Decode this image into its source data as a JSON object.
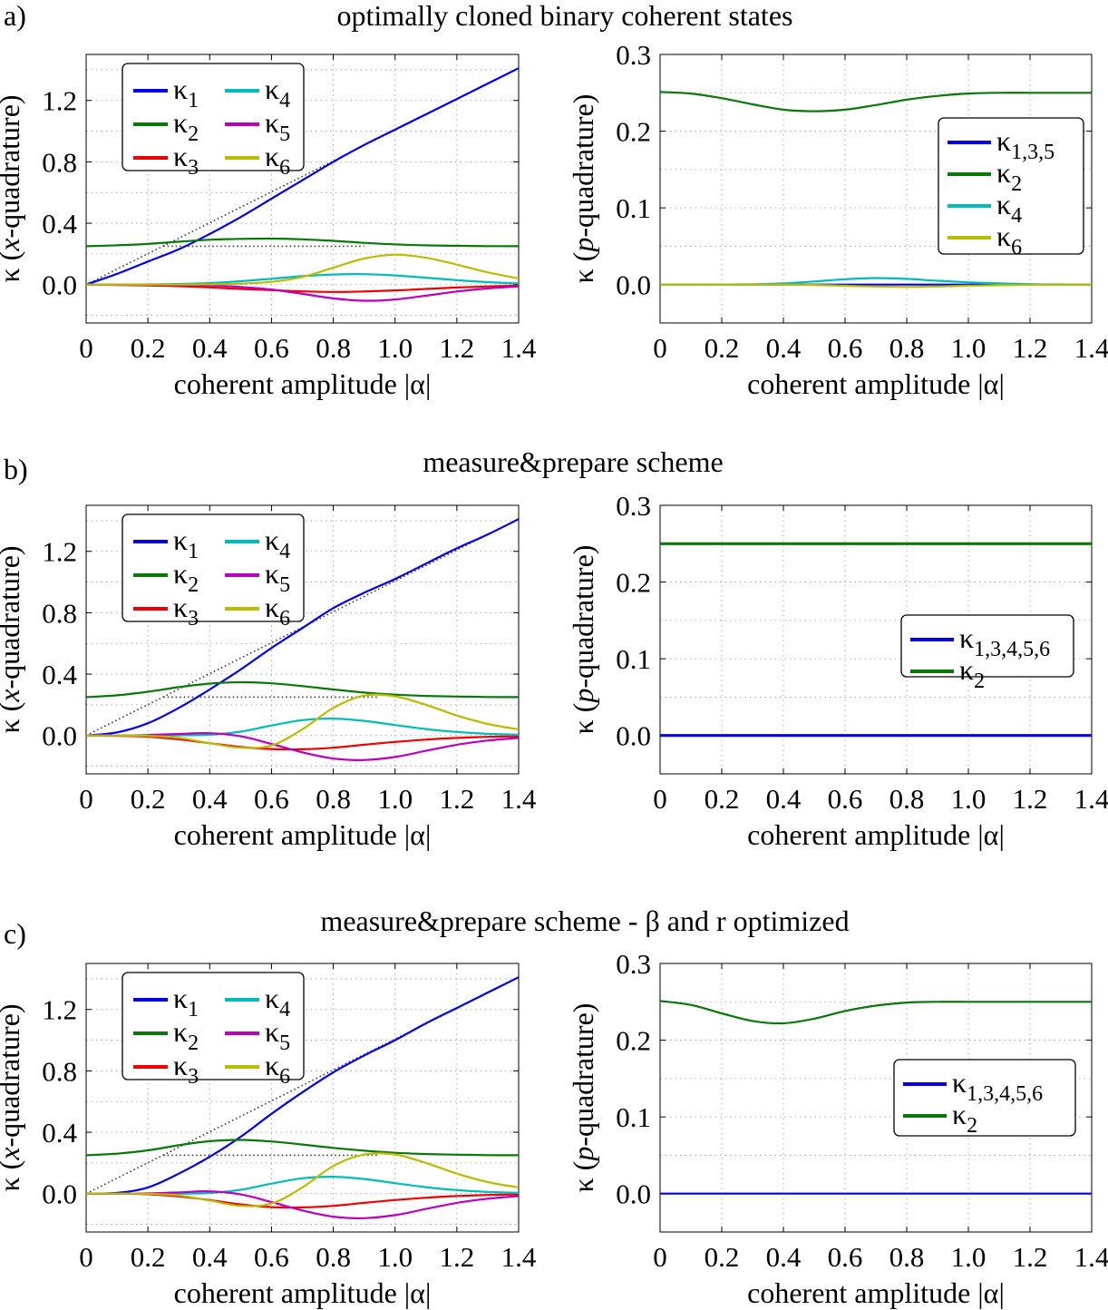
{
  "colors": {
    "k1": "#0000ee",
    "k2": "#087808",
    "k3": "#ee0000",
    "k4": "#00bbbb",
    "k5": "#bb00bb",
    "k6": "#bbbb00",
    "k135": "#0000ee",
    "ref": "#333333",
    "grid": "#999999"
  },
  "panels": [
    {
      "label": "a)",
      "title": "optimally cloned binary coherent states",
      "xlabel": "coherent amplitude |α|",
      "xticks": [
        "0",
        "0.2",
        "0.4",
        "0.6",
        "0.8",
        "1.0",
        "1.2",
        "1.4"
      ],
      "left": {
        "ylabel_pre": "κ (",
        "ylabel_var": "x",
        "ylabel_post": "-quadrature)",
        "yticks": [
          "0.0",
          "0.4",
          "0.8",
          "1.2"
        ],
        "legend": [
          {
            "sym": "κ",
            "sub": "1"
          },
          {
            "sym": "κ",
            "sub": "2"
          },
          {
            "sym": "κ",
            "sub": "3"
          },
          {
            "sym": "κ",
            "sub": "4"
          },
          {
            "sym": "κ",
            "sub": "5"
          },
          {
            "sym": "κ",
            "sub": "6"
          }
        ]
      },
      "right": {
        "ylabel_pre": "κ (",
        "ylabel_var": "p",
        "ylabel_post": "-quadrature)",
        "yticks": [
          "0.0",
          "0.1",
          "0.2",
          "0.3"
        ],
        "legend": [
          {
            "sym": "κ",
            "sub": "1,3,5"
          },
          {
            "sym": "κ",
            "sub": "2"
          },
          {
            "sym": "κ",
            "sub": "4"
          },
          {
            "sym": "κ",
            "sub": "6"
          }
        ]
      }
    },
    {
      "label": "b)",
      "title": "measure&prepare scheme",
      "xlabel": "coherent amplitude |α|",
      "xticks": [
        "0",
        "0.2",
        "0.4",
        "0.6",
        "0.8",
        "1.0",
        "1.2",
        "1.4"
      ],
      "left": {
        "ylabel_pre": "κ (",
        "ylabel_var": "x",
        "ylabel_post": "-quadrature)",
        "yticks": [
          "0.0",
          "0.4",
          "0.8",
          "1.2"
        ],
        "legend": [
          {
            "sym": "κ",
            "sub": "1"
          },
          {
            "sym": "κ",
            "sub": "2"
          },
          {
            "sym": "κ",
            "sub": "3"
          },
          {
            "sym": "κ",
            "sub": "4"
          },
          {
            "sym": "κ",
            "sub": "5"
          },
          {
            "sym": "κ",
            "sub": "6"
          }
        ]
      },
      "right": {
        "ylabel_pre": "κ (",
        "ylabel_var": "p",
        "ylabel_post": "-quadrature)",
        "yticks": [
          "0.0",
          "0.1",
          "0.2",
          "0.3"
        ],
        "legend": [
          {
            "sym": "κ",
            "sub": "1,3,4,5,6"
          },
          {
            "sym": "κ",
            "sub": "2"
          }
        ]
      }
    },
    {
      "label": "c)",
      "title": "measure&prepare scheme - β and r optimized",
      "xlabel": "coherent amplitude |α|",
      "xticks": [
        "0",
        "0.2",
        "0.4",
        "0.6",
        "0.8",
        "1.0",
        "1.2",
        "1.4"
      ],
      "left": {
        "ylabel_pre": "κ (",
        "ylabel_var": "x",
        "ylabel_post": "-quadrature)",
        "yticks": [
          "0.0",
          "0.4",
          "0.8",
          "1.2"
        ],
        "legend": [
          {
            "sym": "κ",
            "sub": "1"
          },
          {
            "sym": "κ",
            "sub": "2"
          },
          {
            "sym": "κ",
            "sub": "3"
          },
          {
            "sym": "κ",
            "sub": "4"
          },
          {
            "sym": "κ",
            "sub": "5"
          },
          {
            "sym": "κ",
            "sub": "6"
          }
        ]
      },
      "right": {
        "ylabel_pre": "κ (",
        "ylabel_var": "p",
        "ylabel_post": "-quadrature)",
        "yticks": [
          "0.0",
          "0.1",
          "0.2",
          "0.3"
        ],
        "legend": [
          {
            "sym": "κ",
            "sub": "1,3,4,5,6"
          },
          {
            "sym": "κ",
            "sub": "2"
          }
        ]
      }
    }
  ],
  "chart_data": [
    {
      "type": "line",
      "panel": "a-left",
      "xlim": [
        0,
        1.4
      ],
      "ylim": [
        -0.25,
        1.5
      ],
      "xlabel": "coherent amplitude |α|",
      "ylabel": "κ (x-quadrature)",
      "x": [
        0,
        0.1,
        0.2,
        0.3,
        0.4,
        0.5,
        0.6,
        0.7,
        0.8,
        0.9,
        1.0,
        1.1,
        1.2,
        1.3,
        1.4
      ],
      "reference": [
        {
          "name": "|α|",
          "style": "dotted",
          "x": [
            0,
            1.4
          ],
          "values": [
            0,
            1.41
          ]
        },
        {
          "name": "0.25",
          "style": "dotted",
          "x": [
            0.25,
            0.9
          ],
          "values": [
            0.25,
            0.25
          ]
        }
      ],
      "series": [
        {
          "name": "κ1",
          "color_key": "k1",
          "values": [
            0,
            0.07,
            0.15,
            0.23,
            0.33,
            0.44,
            0.56,
            0.68,
            0.8,
            0.91,
            1.01,
            1.11,
            1.21,
            1.31,
            1.41
          ]
        },
        {
          "name": "κ2",
          "color_key": "k2",
          "values": [
            0.25,
            0.256,
            0.265,
            0.28,
            0.292,
            0.298,
            0.3,
            0.295,
            0.285,
            0.272,
            0.262,
            0.256,
            0.253,
            0.251,
            0.25
          ]
        },
        {
          "name": "κ3",
          "color_key": "k3",
          "values": [
            0,
            -0.002,
            -0.005,
            -0.01,
            -0.018,
            -0.028,
            -0.036,
            -0.044,
            -0.048,
            -0.045,
            -0.038,
            -0.028,
            -0.019,
            -0.012,
            -0.007
          ]
        },
        {
          "name": "κ4",
          "color_key": "k4",
          "values": [
            0,
            0,
            0.001,
            0.004,
            0.01,
            0.022,
            0.038,
            0.055,
            0.066,
            0.068,
            0.06,
            0.045,
            0.029,
            0.016,
            0.007
          ]
        },
        {
          "name": "κ5",
          "color_key": "k5",
          "values": [
            0,
            0,
            0,
            -0.002,
            -0.006,
            -0.015,
            -0.032,
            -0.06,
            -0.09,
            -0.105,
            -0.097,
            -0.072,
            -0.045,
            -0.025,
            -0.012
          ]
        },
        {
          "name": "κ6",
          "color_key": "k6",
          "values": [
            0,
            0,
            0,
            0,
            0.002,
            0.006,
            0.018,
            0.05,
            0.11,
            0.17,
            0.195,
            0.175,
            0.13,
            0.08,
            0.04
          ]
        }
      ]
    },
    {
      "type": "line",
      "panel": "a-right",
      "xlim": [
        0,
        1.4
      ],
      "ylim": [
        -0.05,
        0.3
      ],
      "xlabel": "coherent amplitude |α|",
      "ylabel": "κ (p-quadrature)",
      "x": [
        0,
        0.1,
        0.2,
        0.3,
        0.4,
        0.5,
        0.6,
        0.7,
        0.8,
        0.9,
        1.0,
        1.1,
        1.2,
        1.3,
        1.4
      ],
      "series": [
        {
          "name": "κ1,3,5",
          "color_key": "k135",
          "values": [
            0,
            0,
            0,
            0,
            0,
            0,
            0,
            0,
            0,
            0,
            0,
            0,
            0,
            0,
            0
          ]
        },
        {
          "name": "κ2",
          "color_key": "k2",
          "values": [
            0.251,
            0.249,
            0.243,
            0.235,
            0.228,
            0.226,
            0.228,
            0.234,
            0.241,
            0.246,
            0.249,
            0.25,
            0.25,
            0.25,
            0.25
          ]
        },
        {
          "name": "κ4",
          "color_key": "k4",
          "values": [
            0,
            0,
            0,
            0.0005,
            0.0015,
            0.004,
            0.007,
            0.0085,
            0.0075,
            0.005,
            0.003,
            0.0015,
            0.0006,
            0.0002,
            0
          ]
        },
        {
          "name": "κ6",
          "color_key": "k6",
          "values": [
            0,
            0,
            0,
            0,
            0,
            -0.0005,
            -0.0015,
            -0.0025,
            -0.003,
            -0.0025,
            -0.0015,
            -0.0008,
            -0.0003,
            -0.0001,
            0
          ]
        }
      ]
    },
    {
      "type": "line",
      "panel": "b-left",
      "xlim": [
        0,
        1.4
      ],
      "ylim": [
        -0.25,
        1.5
      ],
      "xlabel": "coherent amplitude |α|",
      "ylabel": "κ (x-quadrature)",
      "x": [
        0,
        0.1,
        0.2,
        0.3,
        0.4,
        0.5,
        0.6,
        0.7,
        0.8,
        0.9,
        1.0,
        1.1,
        1.2,
        1.3,
        1.4
      ],
      "reference": [
        {
          "name": "|α|",
          "style": "dotted",
          "x": [
            0,
            1.4
          ],
          "values": [
            0,
            1.41
          ]
        },
        {
          "name": "0.25",
          "style": "dotted",
          "x": [
            0.25,
            0.95
          ],
          "values": [
            0.25,
            0.25
          ]
        }
      ],
      "series": [
        {
          "name": "κ1",
          "color_key": "k1",
          "values": [
            0,
            0.02,
            0.08,
            0.18,
            0.3,
            0.43,
            0.57,
            0.7,
            0.83,
            0.93,
            1.02,
            1.12,
            1.22,
            1.31,
            1.41
          ]
        },
        {
          "name": "κ2",
          "color_key": "k2",
          "values": [
            0.25,
            0.262,
            0.285,
            0.315,
            0.338,
            0.347,
            0.34,
            0.322,
            0.3,
            0.28,
            0.266,
            0.258,
            0.254,
            0.251,
            0.25
          ]
        },
        {
          "name": "κ3",
          "color_key": "k3",
          "values": [
            0,
            -0.002,
            -0.008,
            -0.025,
            -0.05,
            -0.075,
            -0.088,
            -0.09,
            -0.08,
            -0.06,
            -0.042,
            -0.027,
            -0.016,
            -0.009,
            -0.005
          ]
        },
        {
          "name": "κ4",
          "color_key": "k4",
          "values": [
            0,
            0,
            0,
            0.001,
            0.005,
            0.025,
            0.065,
            0.1,
            0.11,
            0.095,
            0.068,
            0.042,
            0.023,
            0.011,
            0.005
          ]
        },
        {
          "name": "κ5",
          "color_key": "k5",
          "values": [
            0,
            0,
            0.003,
            0.01,
            0.015,
            -0.005,
            -0.055,
            -0.11,
            -0.15,
            -0.16,
            -0.14,
            -0.1,
            -0.06,
            -0.033,
            -0.016
          ]
        },
        {
          "name": "κ6",
          "color_key": "k6",
          "values": [
            0,
            0,
            -0.002,
            -0.015,
            -0.05,
            -0.08,
            -0.065,
            0.04,
            0.18,
            0.26,
            0.255,
            0.2,
            0.13,
            0.075,
            0.04
          ]
        }
      ]
    },
    {
      "type": "line",
      "panel": "b-right",
      "xlim": [
        0,
        1.4
      ],
      "ylim": [
        -0.05,
        0.3
      ],
      "xlabel": "coherent amplitude |α|",
      "ylabel": "κ (p-quadrature)",
      "x": [
        0,
        0.2,
        0.4,
        0.6,
        0.8,
        1.0,
        1.2,
        1.4
      ],
      "series": [
        {
          "name": "κ1,3,4,5,6",
          "color_key": "k135",
          "values": [
            0,
            0,
            0,
            0,
            0,
            0,
            0,
            0
          ]
        },
        {
          "name": "κ2",
          "color_key": "k2",
          "values": [
            0.25,
            0.25,
            0.25,
            0.25,
            0.25,
            0.25,
            0.25,
            0.25
          ]
        }
      ]
    },
    {
      "type": "line",
      "panel": "c-left",
      "xlim": [
        0,
        1.4
      ],
      "ylim": [
        -0.25,
        1.5
      ],
      "xlabel": "coherent amplitude |α|",
      "ylabel": "κ (x-quadrature)",
      "x": [
        0,
        0.1,
        0.2,
        0.3,
        0.4,
        0.5,
        0.6,
        0.7,
        0.8,
        0.9,
        1.0,
        1.1,
        1.2,
        1.3,
        1.4
      ],
      "reference": [
        {
          "name": "|α|",
          "style": "dotted",
          "x": [
            0,
            1.4
          ],
          "values": [
            0,
            1.41
          ]
        },
        {
          "name": "0.25",
          "style": "dotted",
          "x": [
            0.25,
            0.95
          ],
          "values": [
            0.25,
            0.25
          ]
        }
      ],
      "series": [
        {
          "name": "κ1",
          "color_key": "k1",
          "values": [
            0,
            0.005,
            0.04,
            0.13,
            0.24,
            0.37,
            0.52,
            0.66,
            0.79,
            0.9,
            1.0,
            1.11,
            1.21,
            1.31,
            1.41
          ]
        },
        {
          "name": "κ2",
          "color_key": "k2",
          "values": [
            0.25,
            0.26,
            0.282,
            0.315,
            0.342,
            0.35,
            0.34,
            0.32,
            0.298,
            0.28,
            0.266,
            0.258,
            0.254,
            0.251,
            0.25
          ]
        },
        {
          "name": "κ3",
          "color_key": "k3",
          "values": [
            0,
            0,
            -0.004,
            -0.018,
            -0.042,
            -0.07,
            -0.088,
            -0.09,
            -0.08,
            -0.06,
            -0.042,
            -0.027,
            -0.016,
            -0.009,
            -0.005
          ]
        },
        {
          "name": "κ4",
          "color_key": "k4",
          "values": [
            0,
            0,
            0,
            0,
            0.004,
            0.025,
            0.065,
            0.1,
            0.11,
            0.095,
            0.068,
            0.042,
            0.023,
            0.011,
            0.005
          ]
        },
        {
          "name": "κ5",
          "color_key": "k5",
          "values": [
            0,
            0,
            0.002,
            0.008,
            0.015,
            -0.005,
            -0.055,
            -0.11,
            -0.15,
            -0.16,
            -0.14,
            -0.1,
            -0.06,
            -0.033,
            -0.016
          ]
        },
        {
          "name": "κ6",
          "color_key": "k6",
          "values": [
            0,
            0,
            -0.001,
            -0.012,
            -0.045,
            -0.08,
            -0.065,
            0.04,
            0.18,
            0.255,
            0.255,
            0.2,
            0.13,
            0.075,
            0.04
          ]
        }
      ]
    },
    {
      "type": "line",
      "panel": "c-right",
      "xlim": [
        0,
        1.4
      ],
      "ylim": [
        -0.05,
        0.3
      ],
      "xlabel": "coherent amplitude |α|",
      "ylabel": "κ (p-quadrature)",
      "x": [
        0,
        0.1,
        0.2,
        0.3,
        0.4,
        0.5,
        0.6,
        0.7,
        0.8,
        0.9,
        1.0,
        1.2,
        1.4
      ],
      "series": [
        {
          "name": "κ1,3,4,5,6",
          "color_key": "k135",
          "values": [
            0,
            0,
            0,
            0,
            0,
            0,
            0,
            0,
            0,
            0,
            0,
            0,
            0
          ]
        },
        {
          "name": "κ2",
          "color_key": "k2",
          "values": [
            0.251,
            0.246,
            0.235,
            0.225,
            0.222,
            0.228,
            0.238,
            0.245,
            0.249,
            0.25,
            0.25,
            0.25,
            0.25
          ]
        }
      ]
    }
  ]
}
